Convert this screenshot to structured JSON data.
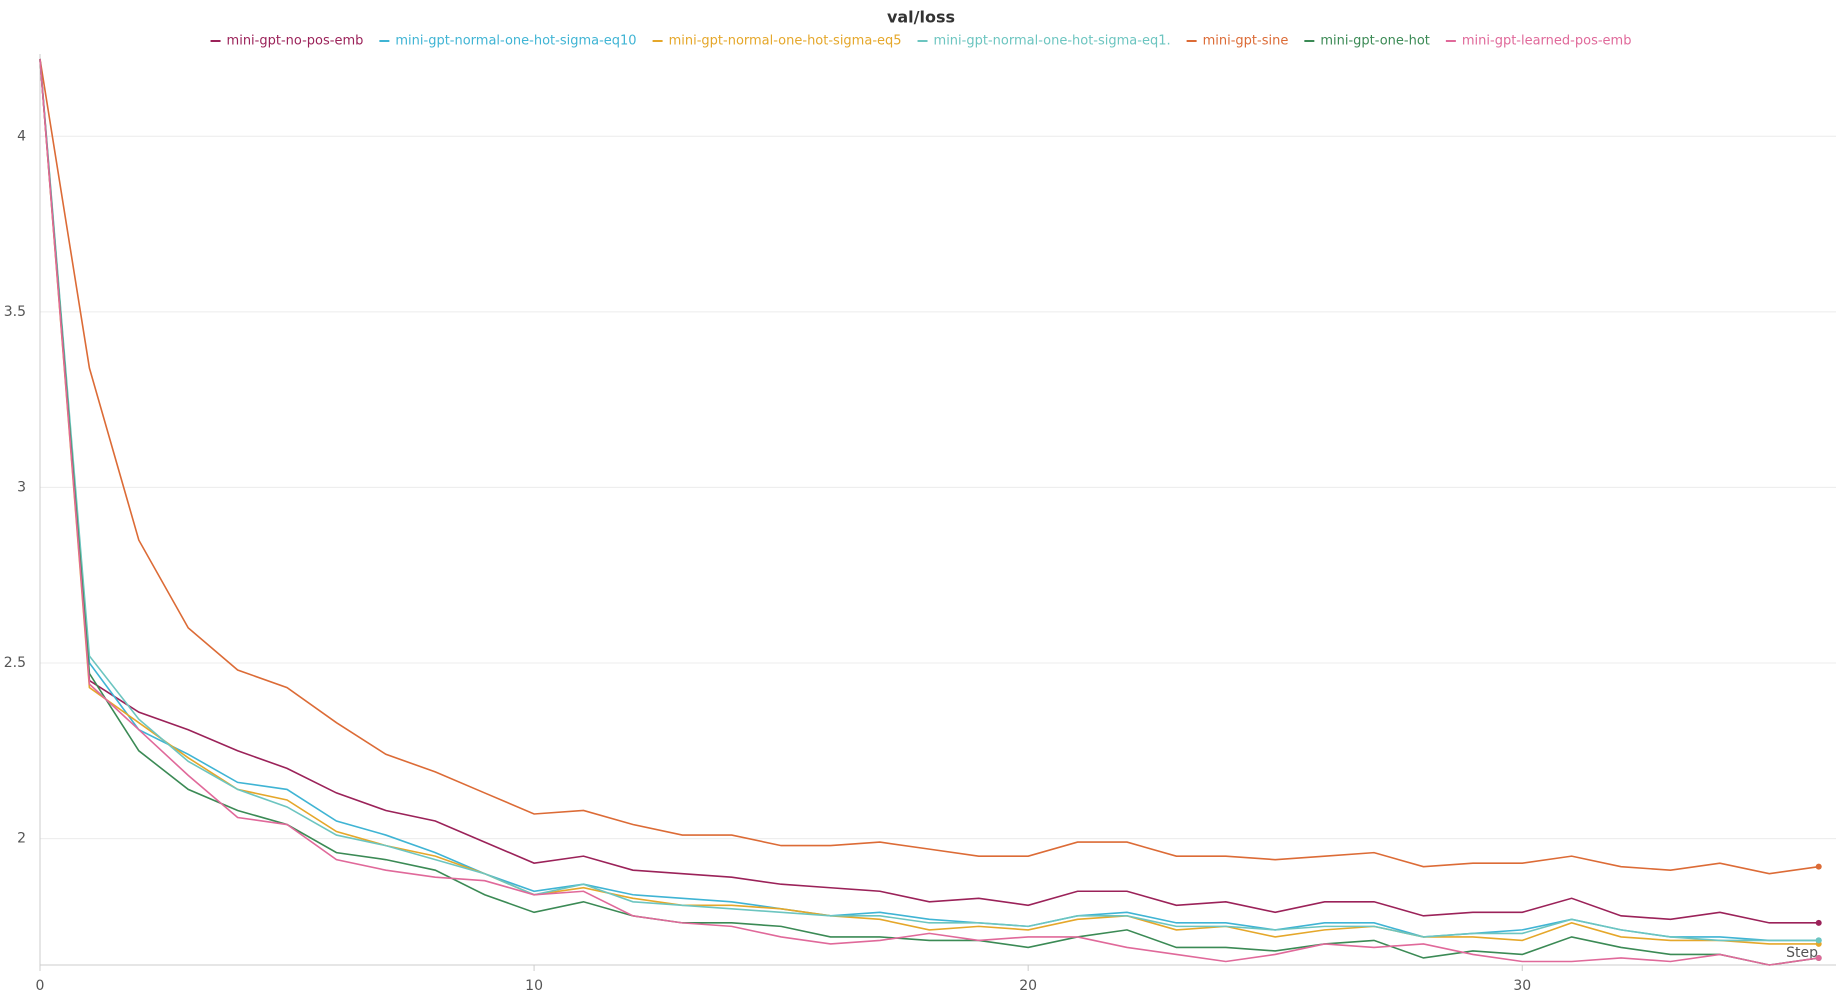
{
  "chart_data": {
    "type": "line",
    "title": "val/loss",
    "x_label": "Step",
    "x": [
      0,
      1,
      2,
      3,
      4,
      5,
      6,
      7,
      8,
      9,
      10,
      11,
      12,
      13,
      14,
      15,
      16,
      17,
      18,
      19,
      20,
      21,
      22,
      23,
      24,
      25,
      26,
      27,
      28,
      29,
      30,
      31,
      32,
      33,
      34,
      35,
      36
    ],
    "xlim": [
      0,
      36.35
    ],
    "xticks": [
      0,
      10,
      20,
      30
    ],
    "ylim": [
      1.64,
      4.22
    ],
    "yticks": [
      2,
      2.5,
      3,
      3.5,
      4
    ],
    "grid": true,
    "series": [
      {
        "name": "mini-gpt-no-pos-emb",
        "color": "#9b2259",
        "values": [
          4.22,
          2.45,
          2.36,
          2.31,
          2.25,
          2.2,
          2.13,
          2.08,
          2.05,
          1.99,
          1.93,
          1.95,
          1.91,
          1.9,
          1.89,
          1.87,
          1.86,
          1.85,
          1.82,
          1.83,
          1.81,
          1.85,
          1.85,
          1.81,
          1.82,
          1.79,
          1.82,
          1.82,
          1.78,
          1.79,
          1.79,
          1.83,
          1.78,
          1.77,
          1.79,
          1.76,
          1.76
        ]
      },
      {
        "name": "mini-gpt-normal-one-hot-sigma-eq10",
        "color": "#3fb4d4",
        "values": [
          4.22,
          2.5,
          2.31,
          2.24,
          2.16,
          2.14,
          2.05,
          2.01,
          1.96,
          1.9,
          1.85,
          1.87,
          1.84,
          1.83,
          1.82,
          1.8,
          1.78,
          1.79,
          1.77,
          1.76,
          1.75,
          1.78,
          1.79,
          1.76,
          1.76,
          1.74,
          1.76,
          1.76,
          1.72,
          1.73,
          1.74,
          1.77,
          1.74,
          1.72,
          1.72,
          1.71,
          1.71
        ]
      },
      {
        "name": "mini-gpt-normal-one-hot-sigma-eq5",
        "color": "#e5a72a",
        "values": [
          4.22,
          2.43,
          2.33,
          2.23,
          2.14,
          2.11,
          2.02,
          1.98,
          1.95,
          1.9,
          1.84,
          1.86,
          1.83,
          1.81,
          1.81,
          1.8,
          1.78,
          1.77,
          1.74,
          1.75,
          1.74,
          1.77,
          1.78,
          1.74,
          1.75,
          1.72,
          1.74,
          1.75,
          1.72,
          1.72,
          1.71,
          1.76,
          1.72,
          1.71,
          1.71,
          1.7,
          1.7
        ]
      },
      {
        "name": "mini-gpt-normal-one-hot-sigma-eq1.",
        "color": "#6cc5c0",
        "values": [
          4.22,
          2.52,
          2.34,
          2.22,
          2.14,
          2.09,
          2.01,
          1.98,
          1.94,
          1.9,
          1.84,
          1.87,
          1.82,
          1.81,
          1.8,
          1.79,
          1.78,
          1.78,
          1.76,
          1.76,
          1.75,
          1.78,
          1.78,
          1.75,
          1.75,
          1.74,
          1.75,
          1.75,
          1.72,
          1.73,
          1.73,
          1.77,
          1.74,
          1.72,
          1.71,
          1.71,
          1.71
        ]
      },
      {
        "name": "mini-gpt-sine",
        "color": "#dc6b36",
        "values": [
          4.22,
          3.34,
          2.85,
          2.6,
          2.48,
          2.43,
          2.33,
          2.24,
          2.19,
          2.13,
          2.07,
          2.08,
          2.04,
          2.01,
          2.01,
          1.98,
          1.98,
          1.99,
          1.97,
          1.95,
          1.95,
          1.99,
          1.99,
          1.95,
          1.95,
          1.94,
          1.95,
          1.96,
          1.92,
          1.93,
          1.93,
          1.95,
          1.92,
          1.91,
          1.93,
          1.9,
          1.92
        ]
      },
      {
        "name": "mini-gpt-one-hot",
        "color": "#3b8a55",
        "values": [
          4.22,
          2.47,
          2.25,
          2.14,
          2.08,
          2.04,
          1.96,
          1.94,
          1.91,
          1.84,
          1.79,
          1.82,
          1.78,
          1.76,
          1.76,
          1.75,
          1.72,
          1.72,
          1.71,
          1.71,
          1.69,
          1.72,
          1.74,
          1.69,
          1.69,
          1.68,
          1.7,
          1.71,
          1.66,
          1.68,
          1.67,
          1.72,
          1.69,
          1.67,
          1.67,
          1.64,
          1.66
        ]
      },
      {
        "name": "mini-gpt-learned-pos-emb",
        "color": "#e0699a",
        "values": [
          4.22,
          2.44,
          2.31,
          2.18,
          2.06,
          2.04,
          1.94,
          1.91,
          1.89,
          1.88,
          1.84,
          1.85,
          1.78,
          1.76,
          1.75,
          1.72,
          1.7,
          1.71,
          1.73,
          1.71,
          1.72,
          1.72,
          1.69,
          1.67,
          1.65,
          1.67,
          1.7,
          1.69,
          1.7,
          1.67,
          1.65,
          1.65,
          1.66,
          1.65,
          1.67,
          1.64,
          1.66
        ]
      }
    ]
  }
}
